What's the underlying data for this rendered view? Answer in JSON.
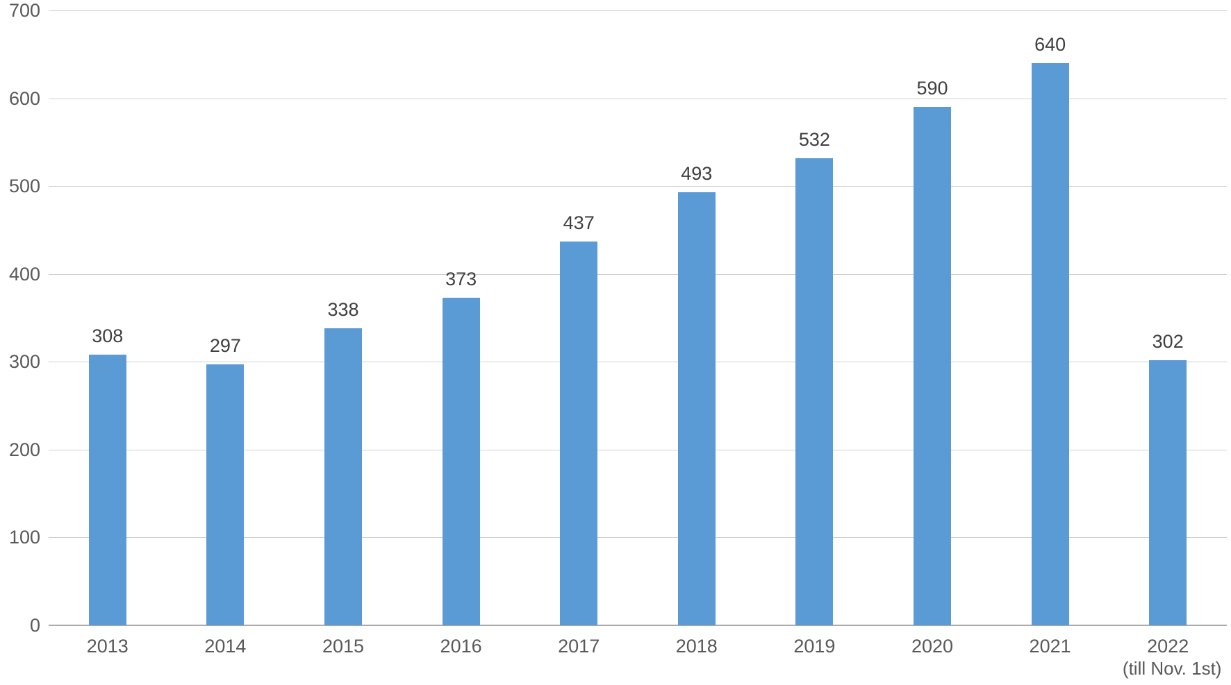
{
  "chart_data": {
    "type": "bar",
    "categories": [
      "2013",
      "2014",
      "2015",
      "2016",
      "2017",
      "2018",
      "2019",
      "2020",
      "2021",
      "2022"
    ],
    "category_notes": {
      "2022": "(till Nov. 1st)"
    },
    "values": [
      308,
      297,
      338,
      373,
      437,
      493,
      532,
      590,
      640,
      302
    ],
    "data_labels_shown": true,
    "title": "",
    "xlabel": "",
    "ylabel": "",
    "ylim": [
      0,
      700
    ],
    "yticks": [
      0,
      100,
      200,
      300,
      400,
      500,
      600,
      700
    ],
    "grid": true,
    "legend": "none",
    "colors": {
      "bar": "#5b9bd5",
      "gridline": "#cfcfcf",
      "axis_line": "#ababab",
      "tick_label": "#595959",
      "value_label": "#3f3f3f",
      "background": "#ffffff"
    }
  }
}
